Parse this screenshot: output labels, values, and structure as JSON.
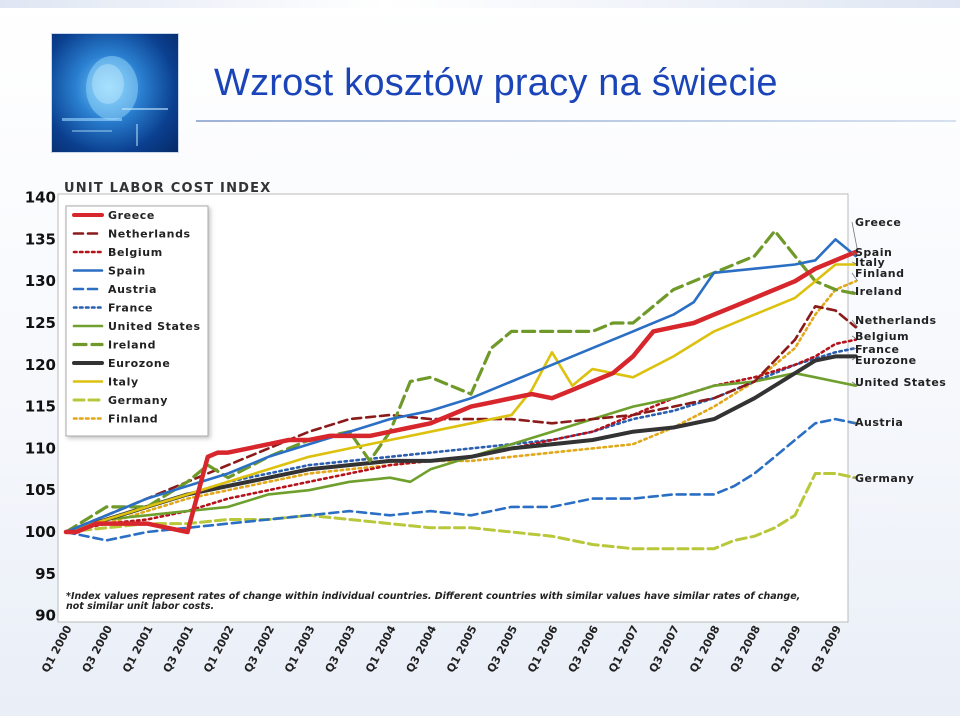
{
  "page": {
    "title": "Wzrost kosztów pracy na świecie"
  },
  "chart_data": {
    "type": "line",
    "title": "UNIT LABOR COST INDEX",
    "ylim": [
      90,
      140
    ],
    "yticks": [
      90,
      95,
      100,
      105,
      110,
      115,
      120,
      125,
      130,
      135,
      140
    ],
    "categories": [
      "Q1 2000",
      "Q3 2000",
      "Q1 2001",
      "Q3 2001",
      "Q1 2002",
      "Q3 2002",
      "Q1 2003",
      "Q3 2003",
      "Q1 2004",
      "Q3 2004",
      "Q1 2005",
      "Q3 2005",
      "Q1 2006",
      "Q3 2006",
      "Q1 2007",
      "Q3 2007",
      "Q1 2008",
      "Q3 2008",
      "Q1 2009",
      "Q3 2009"
    ],
    "grid": false,
    "legend_position": "top-left",
    "note_line1": "*Index values represent rates of change within individual countries. Different countries with similar values have similar rates of change,",
    "note_line2": "not similar unit labor costs.",
    "series": [
      {
        "name": "Greece",
        "end_label": "Greece",
        "color": "#d7262c",
        "dash": "",
        "width": 4.5,
        "x": [
          0,
          0.25,
          0.5,
          0.75,
          1,
          1.25,
          1.5,
          2,
          2.5,
          3,
          3.5,
          3.75,
          4,
          4.5,
          5,
          5.5,
          6,
          6.5,
          7,
          7.5,
          8,
          8.5,
          9,
          9.5,
          10,
          10.5,
          11,
          11.5,
          12,
          12.5,
          13,
          13.5,
          14,
          14.5,
          15,
          15.5,
          16,
          16.5,
          17,
          17.5,
          18,
          18.5,
          19,
          19.5
        ],
        "y": [
          100,
          100,
          100.5,
          101,
          101,
          101,
          101,
          101,
          100.5,
          100,
          109,
          109.5,
          109.5,
          110,
          110.5,
          111,
          111,
          111.5,
          111.5,
          111.5,
          112,
          112.5,
          113,
          114,
          115,
          115.5,
          116,
          116.5,
          116,
          117,
          118,
          119,
          121,
          124,
          124.5,
          125,
          126,
          127,
          128,
          129,
          130,
          131.5,
          132.5,
          133.5
        ]
      },
      {
        "name": "Netherlands",
        "end_label": "Netherlands",
        "color": "#8b1a1a",
        "dash": "9 5",
        "width": 2.6,
        "x": [
          0,
          1,
          2,
          3,
          4,
          5,
          6,
          7,
          8,
          9,
          10,
          11,
          12,
          13,
          14,
          15,
          16,
          17,
          18,
          18.5,
          19,
          19.5
        ],
        "y": [
          100,
          102,
          104,
          106,
          108,
          110,
          112,
          113.5,
          114,
          113.5,
          113.5,
          113.5,
          113,
          113.5,
          114,
          115,
          116,
          118,
          123,
          127,
          126.5,
          124.5
        ]
      },
      {
        "name": "Belgium",
        "end_label": "Belgium",
        "color": "#b5121b",
        "dash": "2.5 3.5",
        "width": 2.6,
        "x": [
          0,
          1,
          2,
          3,
          4,
          5,
          6,
          7,
          8,
          9,
          10,
          11,
          12,
          13,
          14,
          15,
          16,
          17,
          18,
          18.5,
          19,
          19.5
        ],
        "y": [
          100,
          101,
          101.5,
          102.5,
          104,
          105,
          106,
          107,
          108,
          108.5,
          109,
          110,
          111,
          112,
          114,
          116,
          117.5,
          118.5,
          120,
          121,
          122.5,
          123
        ]
      },
      {
        "name": "Spain",
        "end_label": "Spain",
        "color": "#2a6fc4",
        "dash": "",
        "width": 2.6,
        "x": [
          0,
          1,
          2,
          3,
          4,
          5,
          6,
          7,
          8,
          9,
          10,
          11,
          12,
          13,
          14,
          15,
          15.5,
          16,
          17,
          18,
          18.5,
          19,
          19.5
        ],
        "y": [
          100,
          102,
          104,
          105.5,
          107,
          109,
          110.5,
          112,
          113.5,
          114.5,
          116,
          118,
          120,
          122,
          124,
          126,
          127.5,
          131,
          131.5,
          132,
          132.5,
          135,
          133
        ]
      },
      {
        "name": "Austria",
        "end_label": "Austria",
        "color": "#2a6fc4",
        "dash": "9 5",
        "width": 2.6,
        "x": [
          0,
          1,
          2,
          3,
          4,
          5,
          6,
          7,
          8,
          9,
          10,
          11,
          12,
          13,
          14,
          15,
          16,
          16.5,
          17,
          17.5,
          18,
          18.5,
          19,
          19.5
        ],
        "y": [
          100,
          99,
          100,
          100.5,
          101,
          101.5,
          102,
          102.5,
          102,
          102.5,
          102,
          103,
          103,
          104,
          104,
          104.5,
          104.5,
          105.5,
          107,
          109,
          111,
          113,
          113.5,
          113
        ]
      },
      {
        "name": "France",
        "end_label": "France",
        "color": "#2a5fb0",
        "dash": "2.5 3.5",
        "width": 2.6,
        "x": [
          0,
          1,
          2,
          3,
          4,
          5,
          6,
          7,
          8,
          9,
          10,
          11,
          12,
          13,
          14,
          15,
          16,
          17,
          18,
          19,
          19.5
        ],
        "y": [
          100,
          101.5,
          103,
          104.5,
          106,
          107,
          108,
          108.5,
          109,
          109.5,
          110,
          110.5,
          111,
          112,
          113.5,
          114.5,
          116,
          118,
          120,
          121.5,
          122
        ]
      },
      {
        "name": "United States",
        "end_label": "United States",
        "color": "#6f9f2d",
        "dash": "",
        "width": 2.6,
        "x": [
          0,
          1,
          2,
          3,
          4,
          5,
          6,
          7,
          8,
          8.5,
          9,
          10,
          11,
          12,
          13,
          14,
          15,
          16,
          17,
          18,
          18.5,
          19,
          19.5
        ],
        "y": [
          100,
          101.5,
          102,
          102.5,
          103,
          104.5,
          105,
          106,
          106.5,
          106,
          107.5,
          109,
          110.5,
          112,
          113.5,
          115,
          116,
          117.5,
          118,
          119,
          118.5,
          118,
          117.5
        ]
      },
      {
        "name": "Ireland",
        "end_label": "Ireland",
        "color": "#6f9a2a",
        "dash": "12 6",
        "width": 3.2,
        "x": [
          0,
          1,
          2,
          3,
          3.5,
          4,
          5,
          5.5,
          6,
          7,
          7.5,
          8,
          8.5,
          9,
          10,
          10.5,
          11,
          11.5,
          12,
          12.5,
          13,
          13.5,
          14,
          15,
          15.5,
          16,
          17,
          17.5,
          18,
          18.5,
          19,
          19.5
        ],
        "y": [
          100,
          103,
          103,
          106,
          108,
          106.5,
          109,
          110,
          111,
          112,
          108.5,
          112,
          118,
          118.5,
          116.5,
          122,
          124,
          124,
          124,
          124,
          124,
          125,
          125,
          129,
          130,
          131,
          133,
          136,
          133,
          130,
          129,
          128.5
        ]
      },
      {
        "name": "Eurozone",
        "end_label": "Eurozone",
        "color": "#333333",
        "dash": "",
        "width": 4,
        "x": [
          0,
          1,
          2,
          3,
          4,
          5,
          6,
          7,
          8,
          9,
          10,
          11,
          12,
          13,
          14,
          15,
          16,
          17,
          18,
          18.5,
          19,
          19.5
        ],
        "y": [
          100,
          101.5,
          103,
          104.5,
          105.5,
          106.5,
          107.5,
          108,
          108.5,
          108.5,
          109,
          110,
          110.5,
          111,
          112,
          112.5,
          113.5,
          116,
          119,
          120.5,
          121,
          121
        ]
      },
      {
        "name": "Italy",
        "end_label": "Italy",
        "color": "#dcc10e",
        "dash": "",
        "width": 2.6,
        "x": [
          0,
          1,
          2,
          3,
          4,
          5,
          6,
          7,
          8,
          9,
          10,
          11,
          11.5,
          12,
          12.5,
          13,
          13.5,
          14,
          15,
          16,
          17,
          18,
          18.5,
          19,
          19.5
        ],
        "y": [
          100,
          101.5,
          103,
          104.5,
          106,
          107.5,
          109,
          110,
          111,
          112,
          113,
          114,
          117,
          121.5,
          117.5,
          119.5,
          119,
          118.5,
          121,
          124,
          126,
          128,
          130,
          132,
          132
        ]
      },
      {
        "name": "Germany",
        "end_label": "Germany",
        "color": "#b8c83a",
        "dash": "10 5",
        "width": 3,
        "x": [
          0,
          1,
          2,
          3,
          4,
          5,
          6,
          7,
          8,
          9,
          10,
          11,
          12,
          13,
          14,
          15,
          16,
          16.5,
          17,
          17.5,
          18,
          18.5,
          19,
          19.5
        ],
        "y": [
          100,
          100.5,
          101,
          101,
          101.5,
          101.5,
          102,
          101.5,
          101,
          100.5,
          100.5,
          100,
          99.5,
          98.5,
          98,
          98,
          98,
          99,
          99.5,
          100.5,
          102,
          107,
          107,
          106.5
        ]
      },
      {
        "name": "Finland",
        "end_label": "Finland",
        "color": "#e0a81a",
        "dash": "2.5 3.5",
        "width": 2.6,
        "x": [
          0,
          1,
          2,
          3,
          4,
          5,
          6,
          7,
          8,
          9,
          10,
          11,
          12,
          13,
          14,
          15,
          16,
          17,
          18,
          18.5,
          19,
          19.5
        ],
        "y": [
          100,
          101,
          102.5,
          104,
          105,
          106,
          107,
          107.5,
          108,
          108.5,
          108.5,
          109,
          109.5,
          110,
          110.5,
          112.5,
          115,
          118,
          122,
          126,
          129,
          130
        ]
      }
    ]
  }
}
